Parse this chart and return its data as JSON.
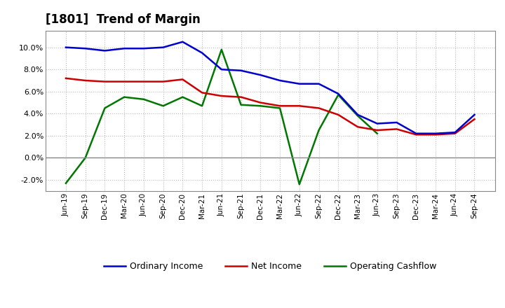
{
  "title": "[1801]  Trend of Margin",
  "x_labels": [
    "Jun-19",
    "Sep-19",
    "Dec-19",
    "Mar-20",
    "Jun-20",
    "Sep-20",
    "Dec-20",
    "Mar-21",
    "Jun-21",
    "Sep-21",
    "Dec-21",
    "Mar-22",
    "Jun-22",
    "Sep-22",
    "Dec-22",
    "Mar-23",
    "Jun-23",
    "Sep-23",
    "Dec-23",
    "Mar-24",
    "Jun-24",
    "Sep-24"
  ],
  "ordinary_income": [
    10.0,
    9.9,
    9.7,
    9.9,
    9.9,
    10.0,
    10.5,
    9.5,
    8.0,
    7.9,
    7.5,
    7.0,
    6.7,
    6.7,
    5.8,
    3.9,
    3.1,
    3.2,
    2.2,
    2.2,
    2.3,
    3.9
  ],
  "net_income": [
    7.2,
    7.0,
    6.9,
    6.9,
    6.9,
    6.9,
    7.1,
    5.9,
    5.6,
    5.5,
    5.0,
    4.7,
    4.7,
    4.5,
    3.9,
    2.8,
    2.5,
    2.6,
    2.1,
    2.1,
    2.2,
    3.5
  ],
  "operating_cashflow": [
    -2.3,
    0.0,
    4.5,
    5.5,
    5.3,
    4.7,
    5.5,
    4.7,
    9.8,
    4.8,
    4.7,
    4.5,
    -2.4,
    2.5,
    5.7,
    3.8,
    2.2,
    null,
    null,
    null,
    null,
    null
  ],
  "ylim": [
    -3.0,
    11.5
  ],
  "yticks": [
    -2.0,
    0.0,
    2.0,
    4.0,
    6.0,
    8.0,
    10.0
  ],
  "line_colors": {
    "ordinary_income": "#0000cc",
    "net_income": "#cc0000",
    "operating_cashflow": "#007700"
  },
  "legend_labels": [
    "Ordinary Income",
    "Net Income",
    "Operating Cashflow"
  ],
  "background_color": "#ffffff",
  "grid_color": "#bbbbbb",
  "zero_line_color": "#888888",
  "border_color": "#888888"
}
